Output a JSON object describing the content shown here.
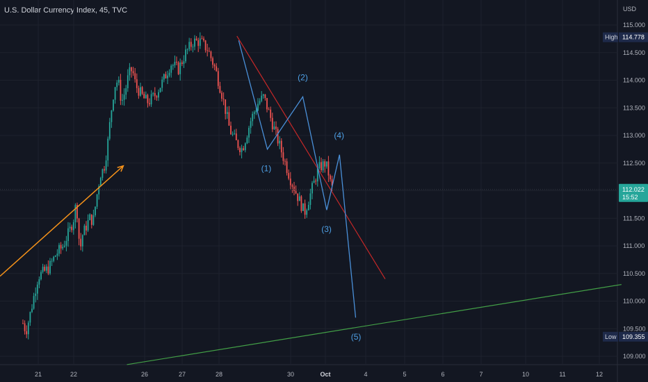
{
  "header": {
    "title": "U.S. Dollar Currency Index, 45, TVC",
    "currency": "USD"
  },
  "colors": {
    "background": "#131722",
    "grid": "#1e222d",
    "candle_up": "#26a69a",
    "candle_down": "#ef5350",
    "wave_line": "#4a90d9",
    "wave_label": "#4ea0e6",
    "resistance": "#c62828",
    "support": "#43a047",
    "arrow": "#f7931a",
    "price_tag": "#26a69a",
    "high_low_tag": "#1e2a4a"
  },
  "chart_data": {
    "type": "candlestick",
    "x_ticks": [
      {
        "day": 21,
        "label": "21"
      },
      {
        "day": 22,
        "label": "22"
      },
      {
        "day": 26,
        "label": "26"
      },
      {
        "day": 27,
        "label": "27"
      },
      {
        "day": 28,
        "label": "28"
      },
      {
        "day": 30,
        "label": "30"
      },
      {
        "day": 31,
        "label": "Oct"
      },
      {
        "day": 34,
        "label": "4"
      },
      {
        "day": 35,
        "label": "5"
      },
      {
        "day": 36,
        "label": "6"
      },
      {
        "day": 37,
        "label": "7"
      },
      {
        "day": 38,
        "label": "10"
      },
      {
        "day": 39,
        "label": "11"
      },
      {
        "day": 40,
        "label": "12"
      }
    ],
    "y_ticks": [
      109.0,
      109.5,
      110.0,
      110.5,
      111.0,
      111.5,
      112.0,
      112.5,
      113.0,
      113.5,
      114.0,
      114.5,
      115.0
    ],
    "ylim": [
      108.8,
      115.2
    ],
    "price_path": [
      [
        20.0,
        109.6
      ],
      [
        20.2,
        109.45
      ],
      [
        20.5,
        109.8
      ],
      [
        20.8,
        110.2
      ],
      [
        21.0,
        110.45
      ],
      [
        21.3,
        110.6
      ],
      [
        21.5,
        110.85
      ],
      [
        21.7,
        111.0
      ],
      [
        21.9,
        111.3
      ],
      [
        22.1,
        111.7
      ],
      [
        22.2,
        111.6
      ],
      [
        22.35,
        110.9
      ],
      [
        22.5,
        111.2
      ],
      [
        22.7,
        111.35
      ],
      [
        22.9,
        111.5
      ],
      [
        23.1,
        111.45
      ],
      [
        23.3,
        111.9
      ],
      [
        23.5,
        112.3
      ],
      [
        23.7,
        112.4
      ],
      [
        23.9,
        112.8
      ],
      [
        24.1,
        113.4
      ],
      [
        24.3,
        113.9
      ],
      [
        24.5,
        114.0
      ],
      [
        24.7,
        113.6
      ],
      [
        24.9,
        113.8
      ],
      [
        25.1,
        114.1
      ],
      [
        25.3,
        114.2
      ],
      [
        25.5,
        113.9
      ],
      [
        25.7,
        113.8
      ],
      [
        25.9,
        113.7
      ],
      [
        26.1,
        113.6
      ],
      [
        26.3,
        113.75
      ],
      [
        26.5,
        114.0
      ],
      [
        26.7,
        114.3
      ],
      [
        26.9,
        114.2
      ],
      [
        27.1,
        114.5
      ],
      [
        27.3,
        114.7
      ],
      [
        27.5,
        114.7
      ],
      [
        27.7,
        114.55
      ],
      [
        27.9,
        114.2
      ],
      [
        28.1,
        113.7
      ],
      [
        28.3,
        113.1
      ],
      [
        28.5,
        112.85
      ],
      [
        28.65,
        112.75
      ],
      [
        28.9,
        113.3
      ],
      [
        29.1,
        113.6
      ],
      [
        29.25,
        113.7
      ],
      [
        29.4,
        113.4
      ],
      [
        29.6,
        113.0
      ],
      [
        29.8,
        112.6
      ],
      [
        30.0,
        112.2
      ],
      [
        30.2,
        111.9
      ],
      [
        30.4,
        111.6
      ],
      [
        30.6,
        112.0
      ],
      [
        30.8,
        112.4
      ],
      [
        31.0,
        112.5
      ],
      [
        31.2,
        112.35
      ],
      [
        31.4,
        112.1
      ],
      [
        31.55,
        112.02
      ]
    ],
    "waves": {
      "points": [
        {
          "day": 28.55,
          "price": 114.72
        },
        {
          "day": 29.35,
          "price": 112.75
        },
        {
          "day": 30.35,
          "price": 113.7
        },
        {
          "day": 31.1,
          "price": 111.65
        },
        {
          "day": 32.05,
          "price": 112.65
        },
        {
          "day": 33.25,
          "price": 109.7
        }
      ],
      "labels": [
        {
          "text": "(1)",
          "day": 29.32,
          "price": 112.35
        },
        {
          "text": "(2)",
          "day": 30.35,
          "price": 114.0
        },
        {
          "text": "(3)",
          "day": 31.08,
          "price": 111.25
        },
        {
          "text": "(4)",
          "day": 32.02,
          "price": 112.95
        },
        {
          "text": "(5)",
          "day": 33.28,
          "price": 109.3
        }
      ]
    },
    "resistance_line": [
      {
        "day": 28.5,
        "price": 114.8
      },
      {
        "day": 34.5,
        "price": 110.4
      }
    ],
    "support_line": [
      {
        "day": 25.0,
        "price": 108.85
      },
      {
        "day": 40.6,
        "price": 110.3
      }
    ],
    "arrow": [
      {
        "day": 18.5,
        "price": 110.45
      },
      {
        "day": 24.8,
        "price": 112.45
      }
    ],
    "current_price": {
      "value": "112.022",
      "countdown": "15:52",
      "price": 112.022
    },
    "high": {
      "label": "High",
      "value": "114.778",
      "price": 114.778
    },
    "low": {
      "label": "Low",
      "value": "109.355",
      "price": 109.355
    }
  }
}
